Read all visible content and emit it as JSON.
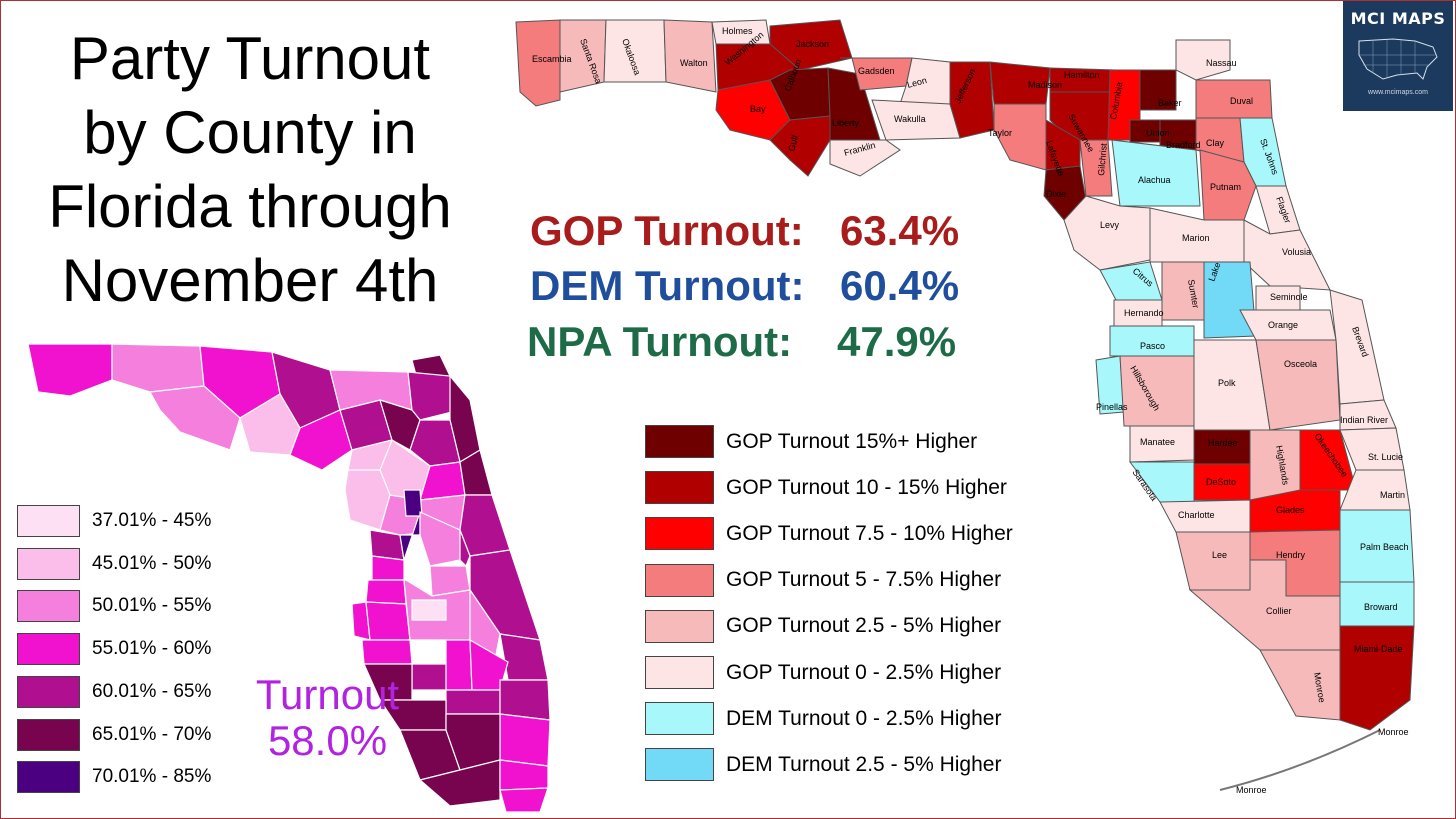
{
  "title_lines": [
    "Party Turnout",
    "by County in",
    "Florida through",
    "November 4th"
  ],
  "stats": {
    "gop": {
      "label": "GOP Turnout:",
      "value": "63.4%",
      "color": "#a81c1c"
    },
    "dem": {
      "label": "DEM Turnout:",
      "value": "60.4%",
      "color": "#1f4f9c"
    },
    "npa": {
      "label": "NPA Turnout:",
      "value": "47.9%",
      "color": "#1e6b47"
    }
  },
  "overall_turnout": {
    "label": "Turnout",
    "value": "58.0%",
    "color": "#b223e0"
  },
  "logo": {
    "name": "MCI MAPS",
    "url": "www.mcimaps.com",
    "bg": "#1b3a5e"
  },
  "turnout_legend": [
    {
      "label": "37.01% - 45%",
      "color": "#fde0f3"
    },
    {
      "label": "45.01% - 50%",
      "color": "#fbbde9"
    },
    {
      "label": "50.01% - 55%",
      "color": "#f57fdc"
    },
    {
      "label": "55.01% - 60%",
      "color": "#f012cf"
    },
    {
      "label": "60.01% - 65%",
      "color": "#b0108f"
    },
    {
      "label": "65.01% - 70%",
      "color": "#780450"
    },
    {
      "label": "70.01% - 85%",
      "color": "#4a0080"
    }
  ],
  "party_legend": [
    {
      "label": "GOP Turnout 15%+ Higher",
      "color": "#6e0000"
    },
    {
      "label": "GOP Turnout 10 - 15% Higher",
      "color": "#b00000"
    },
    {
      "label": "GOP Turnout 7.5 - 10% Higher",
      "color": "#ff0000"
    },
    {
      "label": "GOP Turnout 5 - 7.5% Higher",
      "color": "#f47c7c"
    },
    {
      "label": "GOP Turnout 2.5 - 5% Higher",
      "color": "#f7baba"
    },
    {
      "label": "GOP Turnout 0 - 2.5% Higher",
      "color": "#fde5e5"
    },
    {
      "label": "DEM Turnout 0 - 2.5% Higher",
      "color": "#a8f7fb"
    },
    {
      "label": "DEM Turnout 2.5 - 5% Higher",
      "color": "#72d9f7"
    }
  ],
  "county_labels": [
    "Escambia",
    "Santa Rosa",
    "Okaloosa",
    "Walton",
    "Holmes",
    "Jackson",
    "Washington",
    "Bay",
    "Calhoun",
    "Liberty",
    "Gulf",
    "Gadsden",
    "Leon",
    "Wakulla",
    "Franklin",
    "Jefferson",
    "Madison",
    "Hamilton",
    "Taylor",
    "Suwannee",
    "Lafayette",
    "Columbia",
    "Baker",
    "Union",
    "Bradford",
    "Nassau",
    "Duval",
    "Clay",
    "St. Johns",
    "Dixie",
    "Gilchrist",
    "Alachua",
    "Putnam",
    "Flagler",
    "Levy",
    "Marion",
    "Volusia",
    "Citrus",
    "Sumter",
    "Lake",
    "Seminole",
    "Hernando",
    "Orange",
    "Brevard",
    "Pasco",
    "Pinellas",
    "Hillsborough",
    "Polk",
    "Osceola",
    "Indian River",
    "Manatee",
    "Hardee",
    "Highlands",
    "Okeechobee",
    "St. Lucie",
    "Sarasota",
    "DeSoto",
    "Martin",
    "Charlotte",
    "Glades",
    "Palm Beach",
    "Lee",
    "Hendry",
    "Broward",
    "Collier",
    "Miami-Dade",
    "Monroe",
    "Monroe",
    "Monroe"
  ]
}
